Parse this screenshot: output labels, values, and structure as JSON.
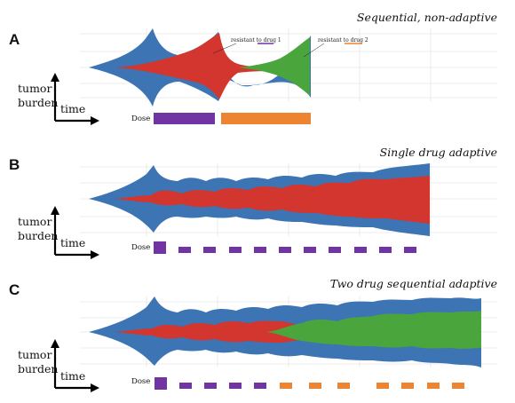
{
  "colors": {
    "sensitive": "#3c74b4",
    "resistant_drug1": "#d3362e",
    "resistant_drug2": "#4aa63c",
    "drug1": "#7034a3",
    "drug2": "#ec8432",
    "grid": "#e6e6e6"
  },
  "panels": [
    {
      "letter": "A",
      "title": "Sequential, non-adaptive",
      "y_label_line1": "tumor",
      "y_label_line2": "burden",
      "x_label": "time",
      "dose_label": "Dose",
      "annotations": [
        {
          "text": "resistant to drug 1",
          "legend_color": "drug1"
        },
        {
          "text": "resistant to drug 2",
          "legend_color": "drug2"
        }
      ]
    },
    {
      "letter": "B",
      "title": "Single drug adaptive",
      "y_label_line1": "tumor",
      "y_label_line2": "burden",
      "x_label": "time",
      "dose_label": "Dose"
    },
    {
      "letter": "C",
      "title": "Two drug sequential adaptive",
      "y_label_line1": "tumor",
      "y_label_line2": "burden",
      "x_label": "time",
      "dose_label": "Dose"
    }
  ]
}
